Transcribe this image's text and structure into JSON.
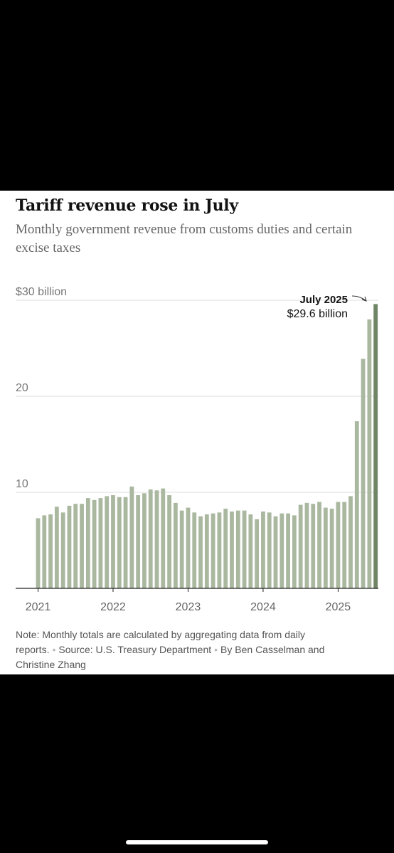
{
  "header": {
    "title": "Tariff revenue rose in July",
    "subtitle": "Monthly government revenue from customs duties and certain excise taxes"
  },
  "chart_data": {
    "type": "bar",
    "title": "Tariff revenue rose in July",
    "subtitle": "Monthly government revenue from customs duties and certain excise taxes",
    "ylabel": "",
    "xlabel": "",
    "ylim": [
      0,
      30
    ],
    "y_ticks": [
      {
        "value": 30,
        "label": "$30 billion"
      },
      {
        "value": 20,
        "label": "20"
      },
      {
        "value": 10,
        "label": "10"
      }
    ],
    "x_ticks": [
      "2021",
      "2022",
      "2023",
      "2024",
      "2025"
    ],
    "grid": true,
    "categories": [
      "Jan 2021",
      "Feb 2021",
      "Mar 2021",
      "Apr 2021",
      "May 2021",
      "Jun 2021",
      "Jul 2021",
      "Aug 2021",
      "Sep 2021",
      "Oct 2021",
      "Nov 2021",
      "Dec 2021",
      "Jan 2022",
      "Feb 2022",
      "Mar 2022",
      "Apr 2022",
      "May 2022",
      "Jun 2022",
      "Jul 2022",
      "Aug 2022",
      "Sep 2022",
      "Oct 2022",
      "Nov 2022",
      "Dec 2022",
      "Jan 2023",
      "Feb 2023",
      "Mar 2023",
      "Apr 2023",
      "May 2023",
      "Jun 2023",
      "Jul 2023",
      "Aug 2023",
      "Sep 2023",
      "Oct 2023",
      "Nov 2023",
      "Dec 2023",
      "Jan 2024",
      "Feb 2024",
      "Mar 2024",
      "Apr 2024",
      "May 2024",
      "Jun 2024",
      "Jul 2024",
      "Aug 2024",
      "Sep 2024",
      "Oct 2024",
      "Nov 2024",
      "Dec 2024",
      "Jan 2025",
      "Feb 2025",
      "Mar 2025",
      "Apr 2025",
      "May 2025",
      "Jun 2025",
      "Jul 2025"
    ],
    "values": [
      7.3,
      7.6,
      7.7,
      8.5,
      7.9,
      8.6,
      8.8,
      8.8,
      9.4,
      9.2,
      9.4,
      9.6,
      9.7,
      9.5,
      9.5,
      10.6,
      9.7,
      9.9,
      10.3,
      10.2,
      10.4,
      9.7,
      8.9,
      8.1,
      8.4,
      7.9,
      7.5,
      7.7,
      7.8,
      7.9,
      8.3,
      8.0,
      8.1,
      8.1,
      7.7,
      7.2,
      8.0,
      7.9,
      7.5,
      7.8,
      7.8,
      7.6,
      8.7,
      8.9,
      8.8,
      9.0,
      8.4,
      8.3,
      9.0,
      9.0,
      9.6,
      17.4,
      23.9,
      28.0,
      29.6
    ],
    "bar_color": "#aab8a0",
    "highlight_color": "#6f8565",
    "annotation": {
      "label": "July 2025",
      "value_text": "$29.6 billion"
    }
  },
  "notes": {
    "note": "Note: Monthly totals are calculated by aggregating data from daily reports.",
    "source": "Source: U.S. Treasury Department",
    "byline": "By Ben Casselman and Christine Zhang"
  }
}
